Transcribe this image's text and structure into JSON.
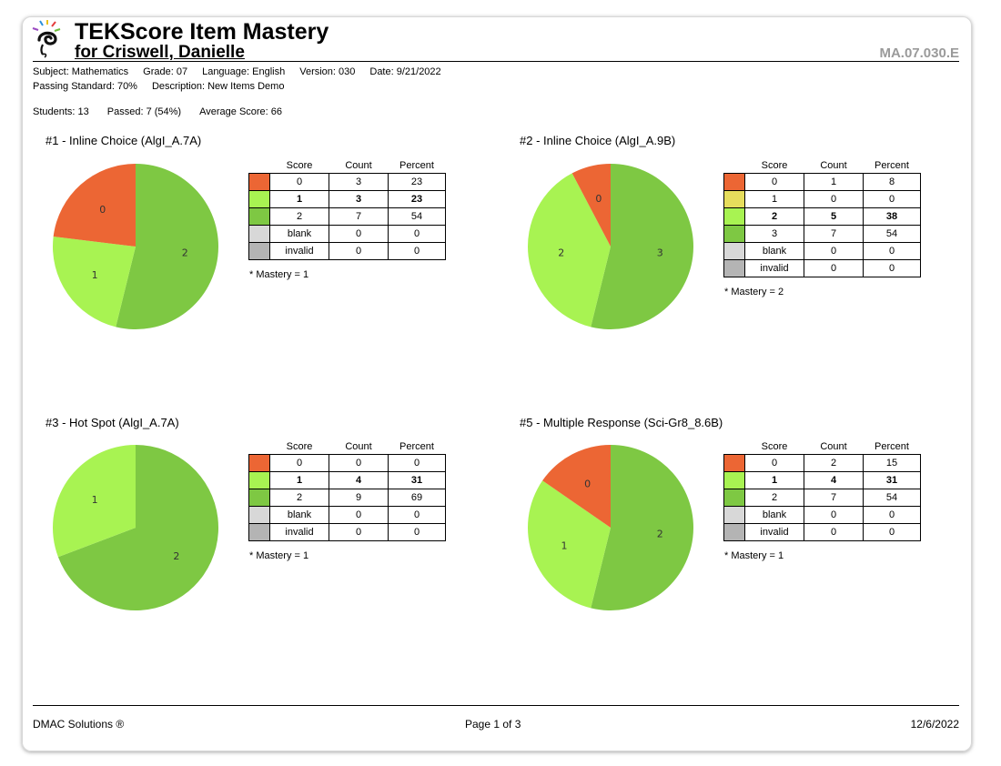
{
  "header": {
    "title": "TEKScore Item Mastery",
    "subtitle": "for Criswell, Danielle",
    "code": "MA.07.030.E"
  },
  "meta": {
    "line1": [
      "Subject: Mathematics",
      "Grade: 07",
      "Language: English",
      "Version: 030",
      "Date: 9/21/2022"
    ],
    "line2": [
      "Passing Standard: 70%",
      "Description: New Items Demo"
    ],
    "line3": [
      "Students: 13",
      "Passed: 7 (54%)",
      "Average Score: 66"
    ]
  },
  "table_headers": {
    "score": "Score",
    "count": "Count",
    "percent": "Percent"
  },
  "colors": {
    "score0": "#ec6634",
    "score1_yellow": "#e6dd5c",
    "partial": "#a8f352",
    "full": "#7ec843",
    "blank": "#d8d8d8",
    "invalid": "#b4b4b4"
  },
  "chart_data": [
    {
      "type": "pie",
      "title": "#1 - Inline Choice  (AlgI_A.7A)",
      "rows": [
        {
          "score": "0",
          "count": 3,
          "percent": 23,
          "color": "#ec6634",
          "bold": false
        },
        {
          "score": "1",
          "count": 3,
          "percent": 23,
          "color": "#a8f352",
          "bold": true
        },
        {
          "score": "2",
          "count": 7,
          "percent": 54,
          "color": "#7ec843",
          "bold": false
        },
        {
          "score": "blank",
          "count": 0,
          "percent": 0,
          "color": "#d8d8d8",
          "bold": false
        },
        {
          "score": "invalid",
          "count": 0,
          "percent": 0,
          "color": "#b4b4b4",
          "bold": false
        }
      ],
      "mastery": "* Mastery = 1"
    },
    {
      "type": "pie",
      "title": "#2 - Inline Choice  (AlgI_A.9B)",
      "rows": [
        {
          "score": "0",
          "count": 1,
          "percent": 8,
          "color": "#ec6634",
          "bold": false
        },
        {
          "score": "1",
          "count": 0,
          "percent": 0,
          "color": "#e6dd5c",
          "bold": false
        },
        {
          "score": "2",
          "count": 5,
          "percent": 38,
          "color": "#a8f352",
          "bold": true
        },
        {
          "score": "3",
          "count": 7,
          "percent": 54,
          "color": "#7ec843",
          "bold": false
        },
        {
          "score": "blank",
          "count": 0,
          "percent": 0,
          "color": "#d8d8d8",
          "bold": false
        },
        {
          "score": "invalid",
          "count": 0,
          "percent": 0,
          "color": "#b4b4b4",
          "bold": false
        }
      ],
      "mastery": "* Mastery = 2"
    },
    {
      "type": "pie",
      "title": "#3 - Hot Spot  (AlgI_A.7A)",
      "rows": [
        {
          "score": "0",
          "count": 0,
          "percent": 0,
          "color": "#ec6634",
          "bold": false
        },
        {
          "score": "1",
          "count": 4,
          "percent": 31,
          "color": "#a8f352",
          "bold": true
        },
        {
          "score": "2",
          "count": 9,
          "percent": 69,
          "color": "#7ec843",
          "bold": false
        },
        {
          "score": "blank",
          "count": 0,
          "percent": 0,
          "color": "#d8d8d8",
          "bold": false
        },
        {
          "score": "invalid",
          "count": 0,
          "percent": 0,
          "color": "#b4b4b4",
          "bold": false
        }
      ],
      "mastery": "* Mastery = 1"
    },
    {
      "type": "pie",
      "title": "#5 - Multiple Response  (Sci-Gr8_8.6B)",
      "rows": [
        {
          "score": "0",
          "count": 2,
          "percent": 15,
          "color": "#ec6634",
          "bold": false
        },
        {
          "score": "1",
          "count": 4,
          "percent": 31,
          "color": "#a8f352",
          "bold": true
        },
        {
          "score": "2",
          "count": 7,
          "percent": 54,
          "color": "#7ec843",
          "bold": false
        },
        {
          "score": "blank",
          "count": 0,
          "percent": 0,
          "color": "#d8d8d8",
          "bold": false
        },
        {
          "score": "invalid",
          "count": 0,
          "percent": 0,
          "color": "#b4b4b4",
          "bold": false
        }
      ],
      "mastery": "* Mastery = 1"
    }
  ],
  "footer": {
    "left": "DMAC Solutions ®",
    "center": "Page 1 of 3",
    "right": "12/6/2022"
  }
}
